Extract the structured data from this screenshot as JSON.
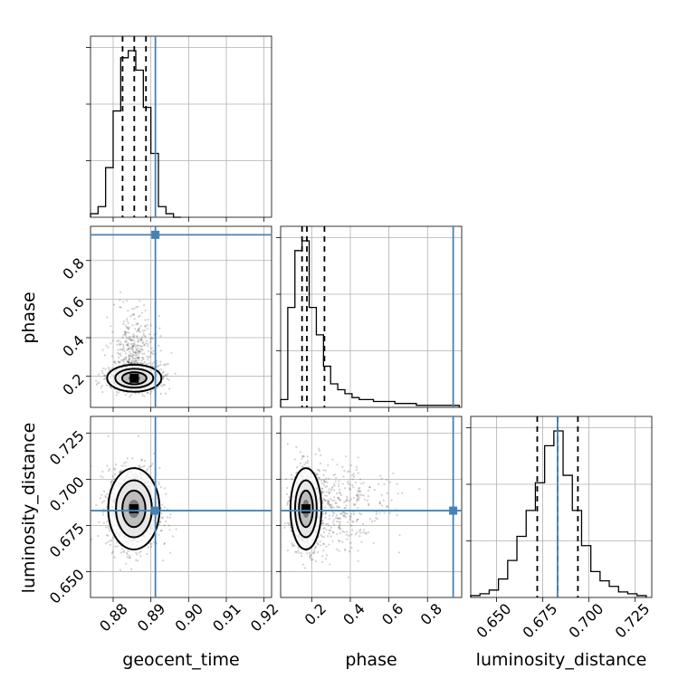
{
  "chart_data": {
    "type": "corner",
    "parameters": [
      "geocent_time",
      "phase",
      "luminosity_distance"
    ],
    "truths": {
      "geocent_time": 0.8912,
      "phase": 0.933,
      "luminosity_distance": 0.683
    },
    "ranges": {
      "geocent_time": [
        0.874,
        0.922
      ],
      "phase": [
        0.039,
        0.977
      ],
      "luminosity_distance": [
        0.636,
        0.734
      ]
    },
    "ticks": {
      "geocent_time": {
        "values": [
          0.88,
          0.89,
          0.9,
          0.91,
          0.92
        ],
        "labels": [
          "0.88",
          "0.89",
          "0.90",
          "0.91",
          "0.92"
        ]
      },
      "phase": {
        "values": [
          0.2,
          0.4,
          0.6,
          0.8
        ],
        "labels": [
          "0.2",
          "0.4",
          "0.6",
          "0.8"
        ]
      },
      "luminosity_distance": {
        "values": [
          0.65,
          0.675,
          0.7,
          0.725
        ],
        "labels": [
          "0.650",
          "0.675",
          "0.700",
          "0.725"
        ]
      }
    },
    "histograms": {
      "geocent_time": {
        "edges": [
          0.874,
          0.876,
          0.878,
          0.88,
          0.882,
          0.884,
          0.886,
          0.888,
          0.89,
          0.892,
          0.894,
          0.896,
          0.898
        ],
        "counts": [
          2,
          6,
          28,
          60,
          90,
          94,
          83,
          62,
          36,
          6,
          2,
          0
        ],
        "quantiles": [
          0.8825,
          0.8856,
          0.8887
        ]
      },
      "phase": {
        "edges": [
          0.039,
          0.076,
          0.113,
          0.15,
          0.187,
          0.224,
          0.261,
          0.298,
          0.335,
          0.372,
          0.409,
          0.446,
          0.483,
          0.52,
          0.557,
          0.594,
          0.631,
          0.668,
          0.705,
          0.742,
          0.779,
          0.816,
          0.853,
          0.89,
          0.927,
          0.964
        ],
        "counts": [
          4,
          51,
          80,
          85,
          51,
          37,
          21,
          12,
          9,
          7,
          5,
          4,
          4,
          3,
          3,
          3,
          2,
          2,
          2,
          1,
          1,
          1,
          1,
          1,
          1
        ],
        "quantiles": [
          0.15,
          0.175,
          0.266
        ]
      },
      "luminosity_distance": {
        "edges": [
          0.636,
          0.641,
          0.646,
          0.651,
          0.656,
          0.661,
          0.666,
          0.671,
          0.676,
          0.681,
          0.686,
          0.691,
          0.696,
          0.701,
          0.706,
          0.711,
          0.716,
          0.721,
          0.726,
          0.731
        ],
        "counts": [
          1,
          2,
          4,
          10,
          20,
          33,
          47,
          62,
          82,
          90,
          66,
          47,
          28,
          14,
          9,
          6,
          3,
          2,
          1
        ],
        "quantiles": [
          0.672,
          0.683,
          0.694
        ]
      }
    },
    "density_2d": {
      "geocent_time_vs_phase": {
        "mean": [
          0.8856,
          0.19
        ],
        "sd": [
          0.0036,
          0.035
        ],
        "tail_sd": [
          0.003,
          0.16
        ]
      },
      "geocent_time_vs_luminosity_distance": {
        "mean": [
          0.8855,
          0.684
        ],
        "sd": [
          0.0034,
          0.011
        ]
      },
      "phase_vs_luminosity_distance": {
        "mean": [
          0.17,
          0.684
        ],
        "sd": [
          0.04,
          0.011
        ],
        "tail_sd": [
          0.2,
          0.012
        ]
      }
    }
  }
}
